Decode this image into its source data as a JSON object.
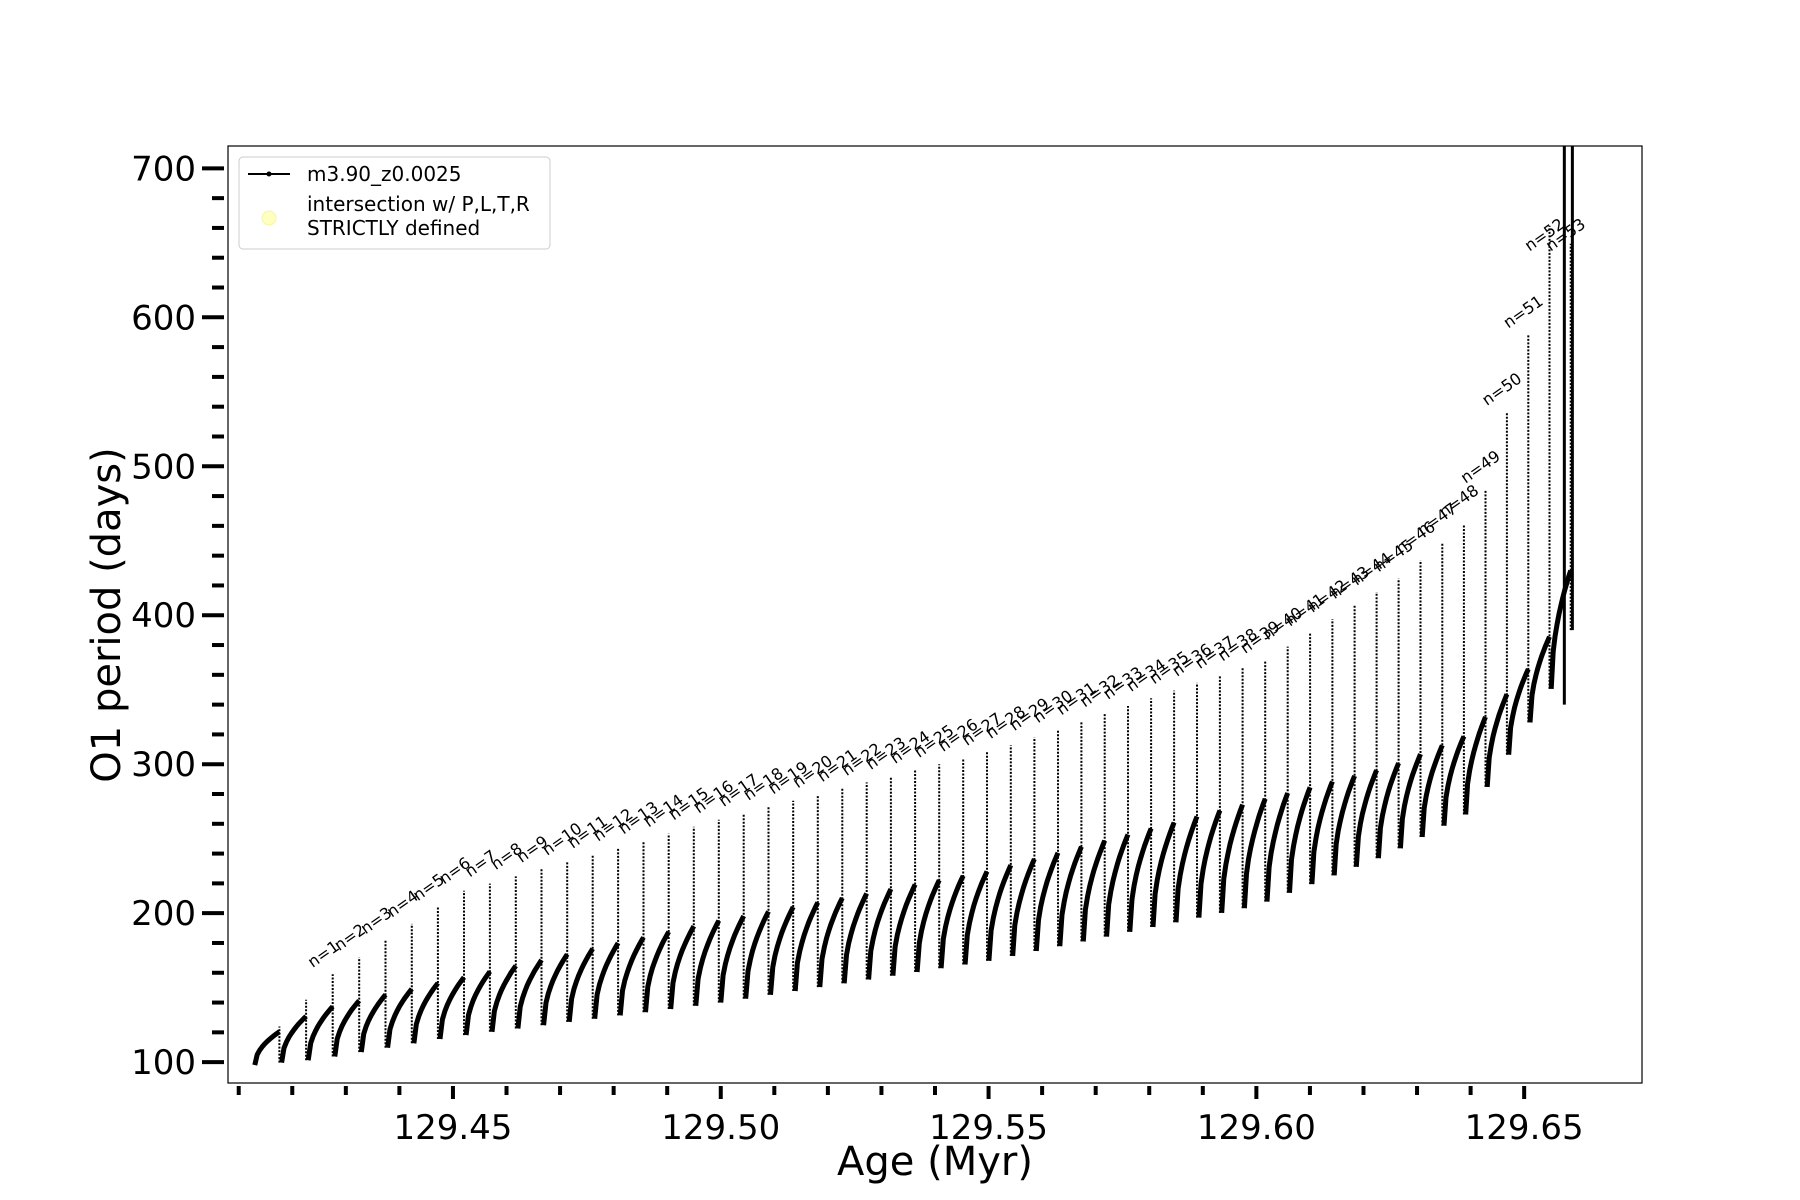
{
  "chart_data": {
    "type": "line",
    "xlabel": "Age (Myr)",
    "ylabel": "O1 period (days)",
    "xlim": [
      129.408,
      129.672
    ],
    "ylim": [
      86,
      715
    ],
    "xticks": [
      129.45,
      129.5,
      129.55,
      129.6,
      129.65
    ],
    "xtick_labels": [
      "129.45",
      "129.50",
      "129.55",
      "129.60",
      "129.65"
    ],
    "yticks": [
      100,
      200,
      300,
      400,
      500,
      600,
      700
    ],
    "ytick_labels": [
      "100",
      "200",
      "300",
      "400",
      "500",
      "600",
      "700"
    ],
    "grid": false,
    "legend_placement": "top-left",
    "legend": [
      {
        "label": "m3.90_z0.0025",
        "marker": "line-with-dot",
        "color": "#000000"
      },
      {
        "label": "intersection w/ P,L,T,R\nSTRICTLY defined",
        "marker": "circle",
        "color": "#ffffc0"
      }
    ],
    "series": [
      {
        "name": "m3.90_z0.0025",
        "color": "#000000",
        "pulse_x_range": [
          129.413,
          129.659
        ],
        "pulses": 55,
        "envelope": {
          "x": [
            129.413,
            129.425,
            129.45,
            129.5,
            129.55,
            129.6,
            129.625,
            129.64,
            129.65,
            129.655,
            129.659
          ],
          "min_y": [
            98,
            102,
            117,
            140,
            168,
            205,
            240,
            268,
            322,
            350,
            390
          ],
          "baseline": [
            110,
            135,
            155,
            195,
            228,
            275,
            298,
            320,
            358,
            385,
            430
          ],
          "peak_y": [
            115,
            158,
            215,
            265,
            310,
            370,
            425,
            470,
            600,
            700,
            600
          ]
        }
      }
    ],
    "annotations": [
      "n=1",
      "n=2",
      "n=3",
      "n=4",
      "n=5",
      "n=6",
      "n=7",
      "n=8",
      "n=9",
      "n=10",
      "n=11",
      "n=12",
      "n=13",
      "n=14",
      "n=15",
      "n=16",
      "n=17",
      "n=18",
      "n=19",
      "n=20",
      "n=21",
      "n=22",
      "n=23",
      "n=24",
      "n=25",
      "n=26",
      "n=27",
      "n=28",
      "n=29",
      "n=30",
      "n=31",
      "n=32",
      "n=33",
      "n=34",
      "n=35",
      "n=36",
      "n=37",
      "n=38",
      "n=39",
      "n=40",
      "n=41",
      "n=42",
      "n=43",
      "n=44",
      "n=45",
      "n=46",
      "n=47",
      "n=48",
      "n=49",
      "n=50",
      "n=51",
      "n=52",
      "n=53"
    ]
  }
}
